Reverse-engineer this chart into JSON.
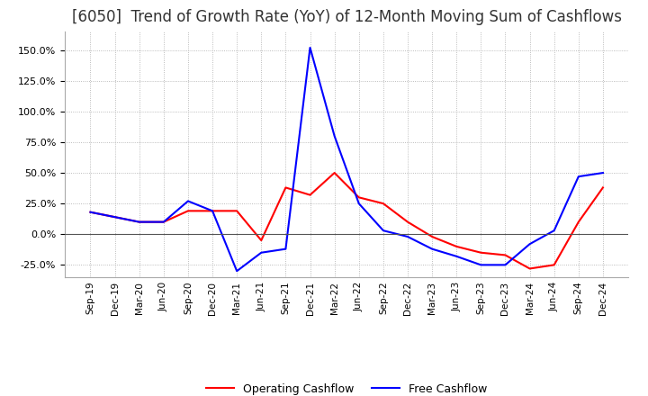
{
  "title": "[6050]  Trend of Growth Rate (YoY) of 12-Month Moving Sum of Cashflows",
  "title_fontsize": 12,
  "x_labels": [
    "Sep-19",
    "Dec-19",
    "Mar-20",
    "Jun-20",
    "Sep-20",
    "Dec-20",
    "Mar-21",
    "Jun-21",
    "Sep-21",
    "Dec-21",
    "Mar-22",
    "Jun-22",
    "Sep-22",
    "Dec-22",
    "Mar-23",
    "Jun-23",
    "Sep-23",
    "Dec-23",
    "Mar-24",
    "Jun-24",
    "Sep-24",
    "Dec-24"
  ],
  "operating_cashflow": [
    0.18,
    0.14,
    0.1,
    0.1,
    0.19,
    0.19,
    0.19,
    -0.05,
    0.38,
    0.32,
    0.5,
    0.3,
    0.25,
    0.1,
    -0.02,
    -0.1,
    -0.15,
    -0.17,
    -0.28,
    -0.25,
    0.1,
    0.38
  ],
  "free_cashflow": [
    0.18,
    0.14,
    0.1,
    0.1,
    0.27,
    0.19,
    -0.3,
    -0.15,
    -0.12,
    1.52,
    0.8,
    0.25,
    0.03,
    -0.02,
    -0.12,
    -0.18,
    -0.25,
    -0.25,
    -0.08,
    0.03,
    0.47,
    0.5
  ],
  "ylim": [
    -0.35,
    1.65
  ],
  "yticks": [
    -0.25,
    0.0,
    0.25,
    0.5,
    0.75,
    1.0,
    1.25,
    1.5
  ],
  "operating_color": "#ff0000",
  "free_color": "#0000ff",
  "grid_color": "#aaaaaa",
  "background_color": "#ffffff",
  "legend_labels": [
    "Operating Cashflow",
    "Free Cashflow"
  ]
}
